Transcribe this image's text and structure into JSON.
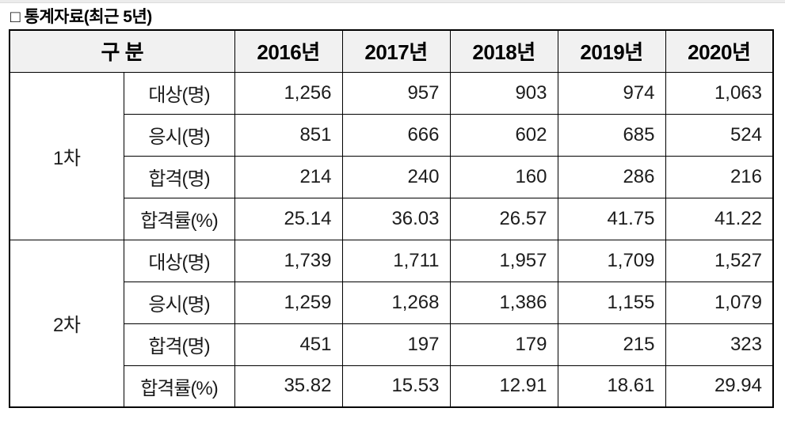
{
  "page": {
    "title": "□ 통계자료(최근 5년)"
  },
  "table": {
    "header": {
      "category": "구 분",
      "years": [
        "2016년",
        "2017년",
        "2018년",
        "2019년",
        "2020년"
      ]
    },
    "groups": [
      {
        "name": "1차",
        "rows": [
          {
            "label": "대상(명)",
            "values": [
              "1,256",
              "957",
              "903",
              "974",
              "1,063"
            ]
          },
          {
            "label": "응시(명)",
            "values": [
              "851",
              "666",
              "602",
              "685",
              "524"
            ]
          },
          {
            "label": "합격(명)",
            "values": [
              "214",
              "240",
              "160",
              "286",
              "216"
            ]
          },
          {
            "label": "합격률(%)",
            "values": [
              "25.14",
              "36.03",
              "26.57",
              "41.75",
              "41.22"
            ]
          }
        ]
      },
      {
        "name": "2차",
        "rows": [
          {
            "label": "대상(명)",
            "values": [
              "1,739",
              "1,711",
              "1,957",
              "1,709",
              "1,527"
            ]
          },
          {
            "label": "응시(명)",
            "values": [
              "1,259",
              "1,268",
              "1,386",
              "1,155",
              "1,079"
            ]
          },
          {
            "label": "합격(명)",
            "values": [
              "451",
              "197",
              "179",
              "215",
              "323"
            ]
          },
          {
            "label": "합격률(%)",
            "values": [
              "35.82",
              "15.53",
              "12.91",
              "18.61",
              "29.94"
            ]
          }
        ]
      }
    ]
  }
}
